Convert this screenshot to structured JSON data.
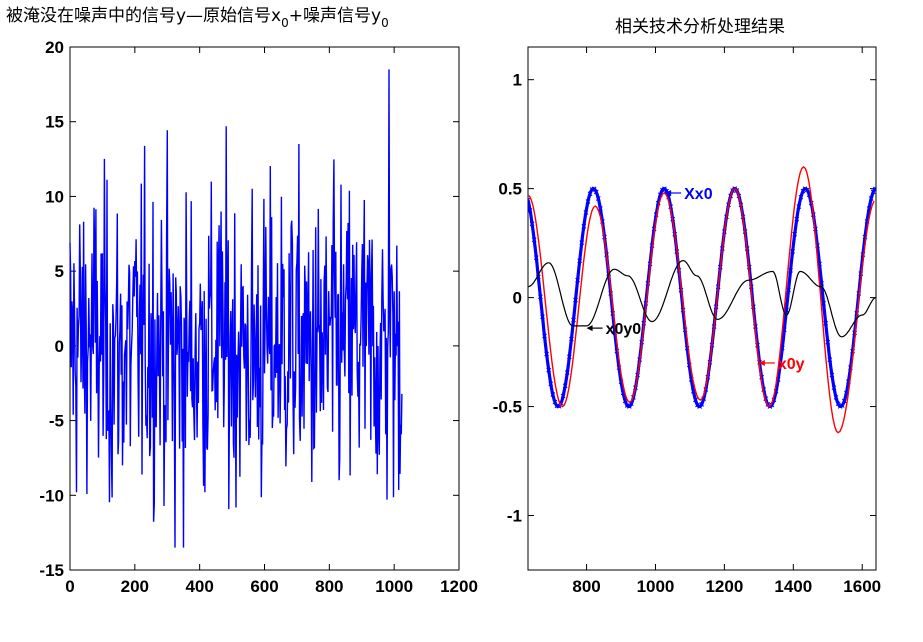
{
  "chart_data": [
    {
      "type": "line",
      "title_parts": [
        "被淹没在噪声中的信号y—原始信号x",
        "0",
        "+噪声信号y",
        "0"
      ],
      "xlim": [
        0,
        1200
      ],
      "ylim": [
        -15,
        20
      ],
      "xticks": [
        0,
        200,
        400,
        600,
        800,
        1000,
        1200
      ],
      "yticks": [
        -15,
        -10,
        -5,
        0,
        5,
        10,
        15,
        20
      ],
      "series": [
        {
          "color": "#0000ff",
          "style": "noise",
          "x_range": [
            0,
            1024
          ],
          "amplitude_range": [
            -13.5,
            18.5
          ],
          "note_visible_extremes": {
            "max": 18.5,
            "min": -13.5
          }
        }
      ]
    },
    {
      "type": "line",
      "title": "相关技术分析处理结果",
      "xlim": [
        630,
        1640
      ],
      "ylim": [
        -1.25,
        1.15
      ],
      "xticks": [
        800,
        1000,
        1200,
        1400,
        1600
      ],
      "yticks": [
        -1,
        -0.5,
        0,
        0.5,
        1
      ],
      "series": [
        {
          "name": "Xx0",
          "color": "#0000ff",
          "kind": "sine",
          "amplitude": 0.5,
          "period": 205,
          "peak_x": 820,
          "marker": "x"
        },
        {
          "name": "x0y",
          "color": "#ff0000",
          "kind": "sine-points",
          "points": [
            [
              630,
              0.47
            ],
            [
              730,
              -0.5
            ],
            [
              825,
              0.42
            ],
            [
              925,
              -0.48
            ],
            [
              1025,
              0.48
            ],
            [
              1130,
              -0.47
            ],
            [
              1230,
              0.5
            ],
            [
              1330,
              -0.5
            ],
            [
              1430,
              0.6
            ],
            [
              1530,
              -0.62
            ],
            [
              1640,
              0.45
            ]
          ]
        },
        {
          "name": "x0y0",
          "color": "#000000",
          "kind": "small-wave",
          "points": [
            [
              630,
              0.05
            ],
            [
              690,
              0.16
            ],
            [
              760,
              -0.13
            ],
            [
              800,
              -0.13
            ],
            [
              880,
              0.13
            ],
            [
              920,
              0.1
            ],
            [
              990,
              -0.11
            ],
            [
              1080,
              0.17
            ],
            [
              1120,
              0.1
            ],
            [
              1180,
              -0.1
            ],
            [
              1270,
              0.08
            ],
            [
              1340,
              0.12
            ],
            [
              1380,
              -0.08
            ],
            [
              1420,
              0.12
            ],
            [
              1480,
              0.05
            ],
            [
              1540,
              -0.18
            ],
            [
              1600,
              -0.08
            ],
            [
              1640,
              0.0
            ]
          ]
        }
      ],
      "annotations": [
        {
          "label": "Xx0",
          "color": "#0000ff",
          "x": 1028,
          "y": 0.48
        },
        {
          "label": "x0y",
          "color": "#ff0000",
          "x": 1300,
          "y": -0.3
        },
        {
          "label": "x0y0",
          "color": "#000000",
          "x": 800,
          "y": -0.14
        }
      ]
    }
  ]
}
